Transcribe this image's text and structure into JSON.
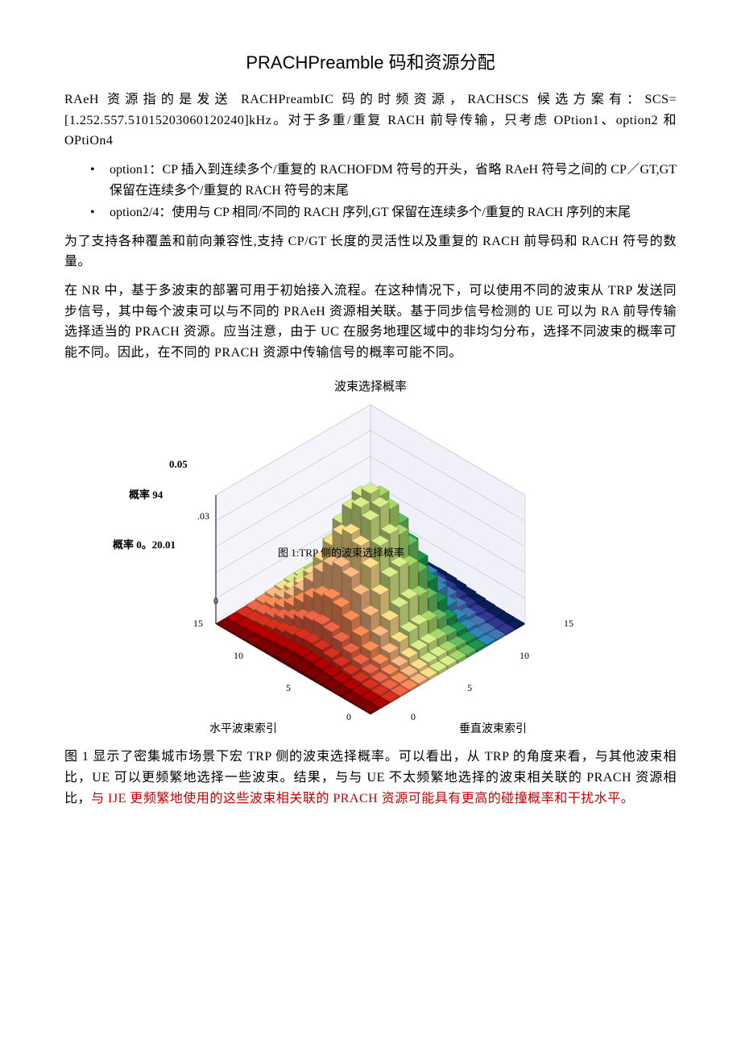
{
  "title": "PRACHPreamble 码和资源分配",
  "p1": "RAeH 资源指的是发送 RACHPreambIC 码的时频资源，RACHSCS 候选方案有：SCS=[1.252.557.51015203060120240]kHz。对于多重/重复 RACH 前导传输，只考虑 OPtion1、option2 和 OPtiOn4",
  "bullet1": "option1：CP 插入到连续多个/重复的 RACHOFDM 符号的开头，省略 RAeH 符号之间的 CP／GT,GT 保留在连续多个/重复的 RACH 符号的末尾",
  "bullet2": "option2/4：使用与 CP 相同/不同的 RACH 序列,GT 保留在连续多个/重复的 RACH 序列的末尾",
  "p2": "为了支持各种覆盖和前向兼容性,支持 CP/GT 长度的灵活性以及重复的 RACH 前导码和 RACH 符号的数量。",
  "p3": "在 NR 中，基于多波束的部署可用于初始接入流程。在这种情况下，可以使用不同的波束从 TRP 发送同步信号，其中每个波束可以与不同的 PRAeH 资源相关联。基于同步信号检测的 UE 可以为 RA 前导传输选择适当的 PRACH 资源。应当注意，由于 UC 在服务地理区域中的非均匀分布，选择不同波束的概率可能不同。因此，在不同的 PRACH 资源中传输信号的概率可能不同。",
  "fig": {
    "type": "3d-bar",
    "title": "波束选择概率",
    "x_label": "水平波束索引",
    "y_label": "垂直波束索引",
    "z_label_a": "0.05",
    "z_label_b": "概率 94",
    "z_tick_03": ".03",
    "z_label_c": "概率 0。20.01",
    "caption_overlay": "图 1:TRP 侧的波束选择概率",
    "x_ticks": [
      "0",
      "5",
      "10",
      "15"
    ],
    "y_ticks": [
      "0",
      "5",
      "10",
      "15"
    ],
    "z_ticks": [
      "0"
    ],
    "grid_size": 16,
    "zmax": 0.05,
    "peak_center": [
      8,
      8
    ],
    "sigma": 2.8,
    "bg_color": "#ffffff",
    "floor_color": "#e8e8f0",
    "grid_color": "#b0b0c0",
    "colormap": [
      "#7f0000",
      "#b30000",
      "#d7301f",
      "#ef6548",
      "#fc8d59",
      "#fdbb84",
      "#fee08b",
      "#d9ef8b",
      "#a6d96a",
      "#66bd63",
      "#1a9850",
      "#3288bd",
      "#4575b4",
      "#313695",
      "#081d58"
    ]
  },
  "p4_a": "图 1 显示了密集城市场景下宏 TRP 侧的波束选择概率。可以看出，从 TRP 的角度来看，与其他波束相比，UE 可以更频繁地选择一些波束。结果，与与 UE 不太频繁地选择的波束相关联的 PRACH 资源相比，",
  "p4_b": "与 IJE 更频繁地使用的这些波束相关联的 PRACH 资源可能具有更高的碰撞概率和干扰水平。"
}
